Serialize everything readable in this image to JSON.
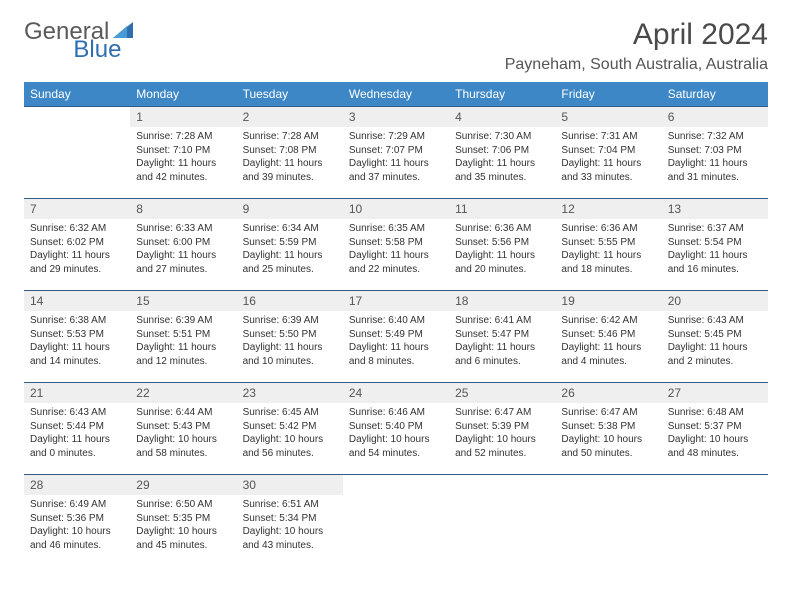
{
  "brand": {
    "part1": "General",
    "part2": "Blue"
  },
  "title": "April 2024",
  "location": "Payneham, South Australia, Australia",
  "colors": {
    "header_bg": "#3d87c7",
    "header_text": "#ffffff",
    "daynum_bg": "#efefef",
    "row_border": "#2f5a8a",
    "brand_gray": "#5a5a5a",
    "brand_blue": "#2f6fb0",
    "body_text": "#333333",
    "page_bg": "#ffffff"
  },
  "typography": {
    "title_fontsize": 30,
    "location_fontsize": 16,
    "header_fontsize": 12,
    "daynum_fontsize": 12,
    "cell_fontsize": 10
  },
  "days_of_week": [
    "Sunday",
    "Monday",
    "Tuesday",
    "Wednesday",
    "Thursday",
    "Friday",
    "Saturday"
  ],
  "weeks": [
    [
      null,
      {
        "n": "1",
        "sunrise": "7:28 AM",
        "sunset": "7:10 PM",
        "daylight": "11 hours and 42 minutes."
      },
      {
        "n": "2",
        "sunrise": "7:28 AM",
        "sunset": "7:08 PM",
        "daylight": "11 hours and 39 minutes."
      },
      {
        "n": "3",
        "sunrise": "7:29 AM",
        "sunset": "7:07 PM",
        "daylight": "11 hours and 37 minutes."
      },
      {
        "n": "4",
        "sunrise": "7:30 AM",
        "sunset": "7:06 PM",
        "daylight": "11 hours and 35 minutes."
      },
      {
        "n": "5",
        "sunrise": "7:31 AM",
        "sunset": "7:04 PM",
        "daylight": "11 hours and 33 minutes."
      },
      {
        "n": "6",
        "sunrise": "7:32 AM",
        "sunset": "7:03 PM",
        "daylight": "11 hours and 31 minutes."
      }
    ],
    [
      {
        "n": "7",
        "sunrise": "6:32 AM",
        "sunset": "6:02 PM",
        "daylight": "11 hours and 29 minutes."
      },
      {
        "n": "8",
        "sunrise": "6:33 AM",
        "sunset": "6:00 PM",
        "daylight": "11 hours and 27 minutes."
      },
      {
        "n": "9",
        "sunrise": "6:34 AM",
        "sunset": "5:59 PM",
        "daylight": "11 hours and 25 minutes."
      },
      {
        "n": "10",
        "sunrise": "6:35 AM",
        "sunset": "5:58 PM",
        "daylight": "11 hours and 22 minutes."
      },
      {
        "n": "11",
        "sunrise": "6:36 AM",
        "sunset": "5:56 PM",
        "daylight": "11 hours and 20 minutes."
      },
      {
        "n": "12",
        "sunrise": "6:36 AM",
        "sunset": "5:55 PM",
        "daylight": "11 hours and 18 minutes."
      },
      {
        "n": "13",
        "sunrise": "6:37 AM",
        "sunset": "5:54 PM",
        "daylight": "11 hours and 16 minutes."
      }
    ],
    [
      {
        "n": "14",
        "sunrise": "6:38 AM",
        "sunset": "5:53 PM",
        "daylight": "11 hours and 14 minutes."
      },
      {
        "n": "15",
        "sunrise": "6:39 AM",
        "sunset": "5:51 PM",
        "daylight": "11 hours and 12 minutes."
      },
      {
        "n": "16",
        "sunrise": "6:39 AM",
        "sunset": "5:50 PM",
        "daylight": "11 hours and 10 minutes."
      },
      {
        "n": "17",
        "sunrise": "6:40 AM",
        "sunset": "5:49 PM",
        "daylight": "11 hours and 8 minutes."
      },
      {
        "n": "18",
        "sunrise": "6:41 AM",
        "sunset": "5:47 PM",
        "daylight": "11 hours and 6 minutes."
      },
      {
        "n": "19",
        "sunrise": "6:42 AM",
        "sunset": "5:46 PM",
        "daylight": "11 hours and 4 minutes."
      },
      {
        "n": "20",
        "sunrise": "6:43 AM",
        "sunset": "5:45 PM",
        "daylight": "11 hours and 2 minutes."
      }
    ],
    [
      {
        "n": "21",
        "sunrise": "6:43 AM",
        "sunset": "5:44 PM",
        "daylight": "11 hours and 0 minutes."
      },
      {
        "n": "22",
        "sunrise": "6:44 AM",
        "sunset": "5:43 PM",
        "daylight": "10 hours and 58 minutes."
      },
      {
        "n": "23",
        "sunrise": "6:45 AM",
        "sunset": "5:42 PM",
        "daylight": "10 hours and 56 minutes."
      },
      {
        "n": "24",
        "sunrise": "6:46 AM",
        "sunset": "5:40 PM",
        "daylight": "10 hours and 54 minutes."
      },
      {
        "n": "25",
        "sunrise": "6:47 AM",
        "sunset": "5:39 PM",
        "daylight": "10 hours and 52 minutes."
      },
      {
        "n": "26",
        "sunrise": "6:47 AM",
        "sunset": "5:38 PM",
        "daylight": "10 hours and 50 minutes."
      },
      {
        "n": "27",
        "sunrise": "6:48 AM",
        "sunset": "5:37 PM",
        "daylight": "10 hours and 48 minutes."
      }
    ],
    [
      {
        "n": "28",
        "sunrise": "6:49 AM",
        "sunset": "5:36 PM",
        "daylight": "10 hours and 46 minutes."
      },
      {
        "n": "29",
        "sunrise": "6:50 AM",
        "sunset": "5:35 PM",
        "daylight": "10 hours and 45 minutes."
      },
      {
        "n": "30",
        "sunrise": "6:51 AM",
        "sunset": "5:34 PM",
        "daylight": "10 hours and 43 minutes."
      },
      null,
      null,
      null,
      null
    ]
  ]
}
